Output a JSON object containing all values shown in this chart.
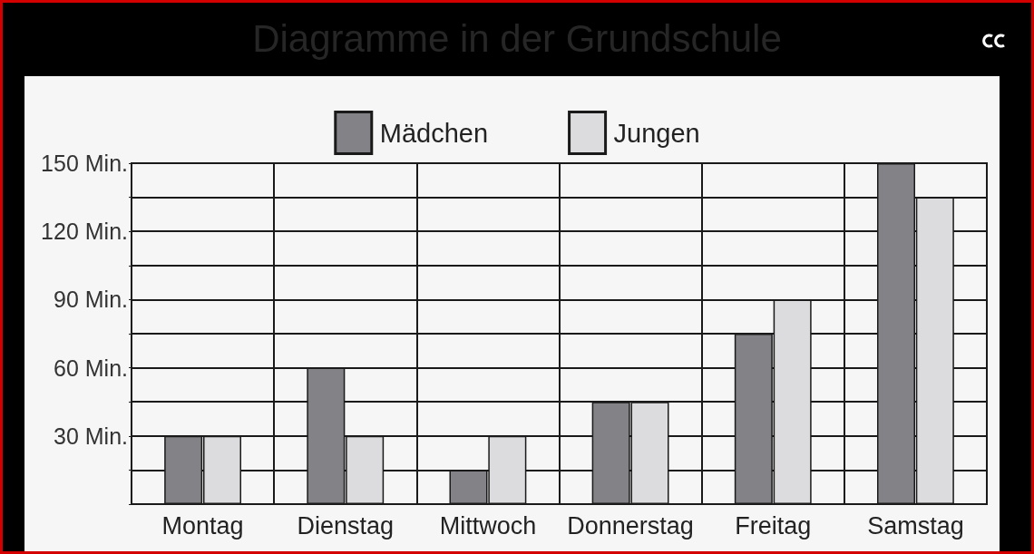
{
  "chart_data": {
    "type": "bar",
    "title": "Diagramme in der Grundschule",
    "categories": [
      "Montag",
      "Dienstag",
      "Mittwoch",
      "Donnerstag",
      "Freitag",
      "Samstag"
    ],
    "series": [
      {
        "name": "Mädchen",
        "color": "#838387",
        "values": [
          30,
          60,
          15,
          45,
          75,
          150
        ]
      },
      {
        "name": "Jungen",
        "color": "#dcdcdf",
        "values": [
          30,
          30,
          30,
          45,
          90,
          135
        ]
      }
    ],
    "ylim": [
      0,
      150
    ],
    "yticks": [
      {
        "value": 15,
        "label": null
      },
      {
        "value": 30,
        "label": "30 Min."
      },
      {
        "value": 45,
        "label": null
      },
      {
        "value": 60,
        "label": "60 Min."
      },
      {
        "value": 75,
        "label": null
      },
      {
        "value": 90,
        "label": "90 Min."
      },
      {
        "value": 105,
        "label": null
      },
      {
        "value": 120,
        "label": "120 Min."
      },
      {
        "value": 135,
        "label": null
      },
      {
        "value": 150,
        "label": "150 Min."
      }
    ],
    "grid": true,
    "legend": "top"
  }
}
